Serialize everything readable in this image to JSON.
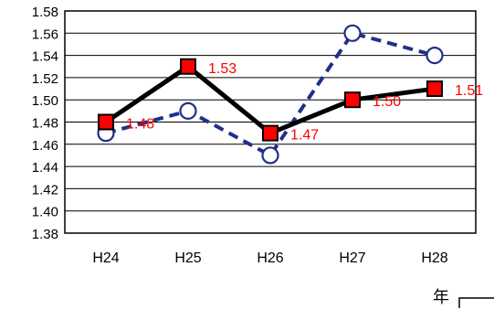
{
  "chart_data": {
    "type": "line",
    "categories": [
      "H24",
      "H25",
      "H26",
      "H27",
      "H28"
    ],
    "ylim": [
      1.38,
      1.58
    ],
    "y_ticks": [
      "1.58",
      "1.56",
      "1.54",
      "1.52",
      "1.50",
      "1.48",
      "1.46",
      "1.44",
      "1.42",
      "1.40",
      "1.38"
    ],
    "grid": true,
    "series": [
      {
        "values": [
          1.48,
          1.53,
          1.47,
          1.5,
          1.51
        ],
        "value_labels": [
          "1.48",
          "1.53",
          "1.47",
          "1.50",
          "1.51"
        ],
        "line_color": "#000000",
        "marker": "square",
        "marker_fill": "#ff0000",
        "line_style": "solid"
      },
      {
        "values": [
          1.47,
          1.49,
          1.45,
          1.56,
          1.54
        ],
        "line_color": "#1f2f8a",
        "marker": "circle",
        "marker_fill": "#ffffff",
        "line_style": "dashed"
      }
    ],
    "xlabel": "年",
    "ylabel": "",
    "title": "",
    "label_color": "#ff0000",
    "text_color": "#000000"
  }
}
